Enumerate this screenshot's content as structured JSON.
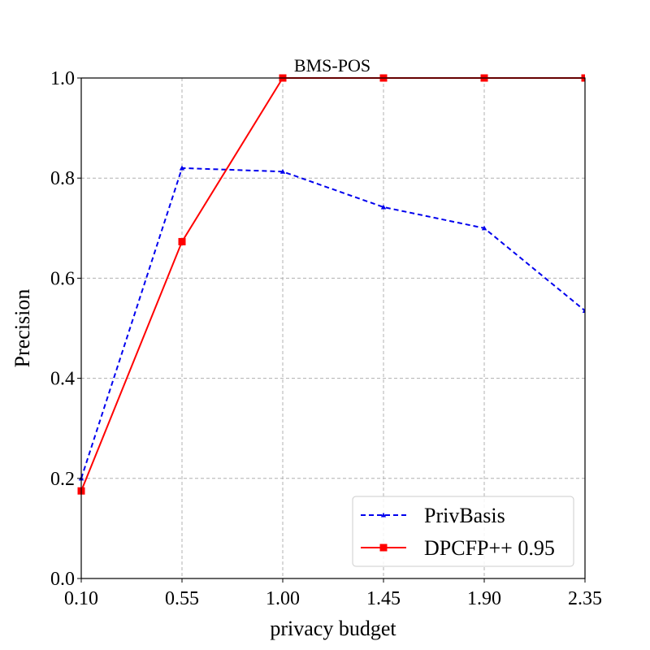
{
  "chart_data": {
    "type": "line",
    "title": "BMS-POS",
    "xlabel": "privacy budget",
    "ylabel": "Precision",
    "x": [
      0.1,
      0.55,
      1.0,
      1.45,
      1.9,
      2.35
    ],
    "x_tick_labels": [
      "0.10",
      "0.55",
      "1.00",
      "1.45",
      "1.90",
      "2.35"
    ],
    "y_ticks": [
      0.0,
      0.2,
      0.4,
      0.6,
      0.8,
      1.0
    ],
    "y_tick_labels": [
      "0.0",
      "0.2",
      "0.4",
      "0.6",
      "0.8",
      "1.0"
    ],
    "xlim": [
      0.1,
      2.35
    ],
    "ylim": [
      0.0,
      1.0
    ],
    "grid": true,
    "legend_position": "bottom-right",
    "series": [
      {
        "name": "PrivBasis",
        "values": [
          0.2,
          0.82,
          0.813,
          0.742,
          0.7,
          0.535
        ],
        "color": "#0000ee",
        "line_style": "dashed",
        "marker": "triangle"
      },
      {
        "name": "DPCFP++ 0.95",
        "values": [
          0.175,
          0.673,
          1.0,
          1.0,
          1.0,
          1.0
        ],
        "color": "#ff0000",
        "line_style": "solid",
        "marker": "square"
      }
    ]
  }
}
